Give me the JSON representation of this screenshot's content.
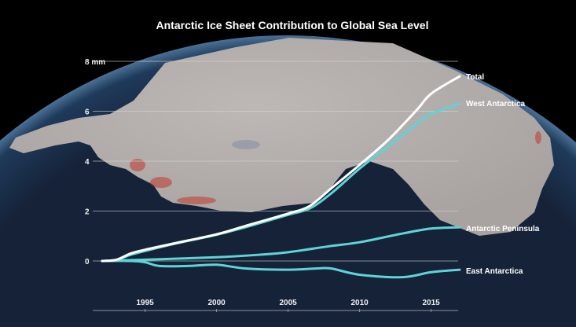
{
  "chart_data": {
    "type": "line",
    "title": "Antarctic Ice Sheet Contribution to Global Sea Level",
    "xlabel": "",
    "ylabel": "mm",
    "xlim": [
      1992,
      2017
    ],
    "ylim": [
      -0.8,
      8
    ],
    "grid": true,
    "y_ticks": [
      {
        "value": 0,
        "label": "0"
      },
      {
        "value": 2,
        "label": "2"
      },
      {
        "value": 4,
        "label": "4"
      },
      {
        "value": 6,
        "label": "6"
      },
      {
        "value": 8,
        "label": "8 mm"
      }
    ],
    "x_ticks": [
      {
        "value": 1995,
        "label": "1995"
      },
      {
        "value": 2000,
        "label": "2000"
      },
      {
        "value": 2005,
        "label": "2005"
      },
      {
        "value": 2010,
        "label": "2010"
      },
      {
        "value": 2015,
        "label": "2015"
      }
    ],
    "series": [
      {
        "name": "Total",
        "color": "#ffffff",
        "x": [
          1992,
          1993,
          1994,
          1995,
          1997,
          2000,
          2002,
          2005,
          2006.5,
          2008,
          2010,
          2012,
          2014,
          2015,
          2017
        ],
        "y": [
          0,
          0.05,
          0.3,
          0.45,
          0.7,
          1.07,
          1.4,
          1.9,
          2.2,
          2.9,
          3.85,
          4.85,
          6.05,
          6.7,
          7.4
        ]
      },
      {
        "name": "West Antarctica",
        "color": "#5fd3d6",
        "x": [
          1992,
          1993,
          1994,
          1995,
          1997,
          2000,
          2002,
          2005,
          2006.5,
          2008,
          2010,
          2012,
          2014,
          2015,
          2017
        ],
        "y": [
          0,
          0.05,
          0.25,
          0.4,
          0.68,
          1.05,
          1.35,
          1.85,
          2.1,
          2.7,
          3.7,
          4.6,
          5.5,
          5.9,
          6.3
        ]
      },
      {
        "name": "Antarctic Peninsula",
        "color": "#5fd3d6",
        "x": [
          1992,
          1995,
          2000,
          2003,
          2005,
          2008,
          2010,
          2013,
          2015,
          2017
        ],
        "y": [
          0,
          0.05,
          0.15,
          0.25,
          0.35,
          0.6,
          0.75,
          1.1,
          1.3,
          1.35
        ]
      },
      {
        "name": "East Antarctica",
        "color": "#5fd3d6",
        "x": [
          1992,
          1994,
          1995,
          1996,
          1998,
          2000,
          2002,
          2005,
          2007,
          2008,
          2010,
          2013,
          2015,
          2017
        ],
        "y": [
          0,
          0,
          -0.05,
          -0.2,
          -0.2,
          -0.15,
          -0.3,
          -0.35,
          -0.3,
          -0.3,
          -0.55,
          -0.65,
          -0.45,
          -0.35
        ]
      }
    ]
  }
}
